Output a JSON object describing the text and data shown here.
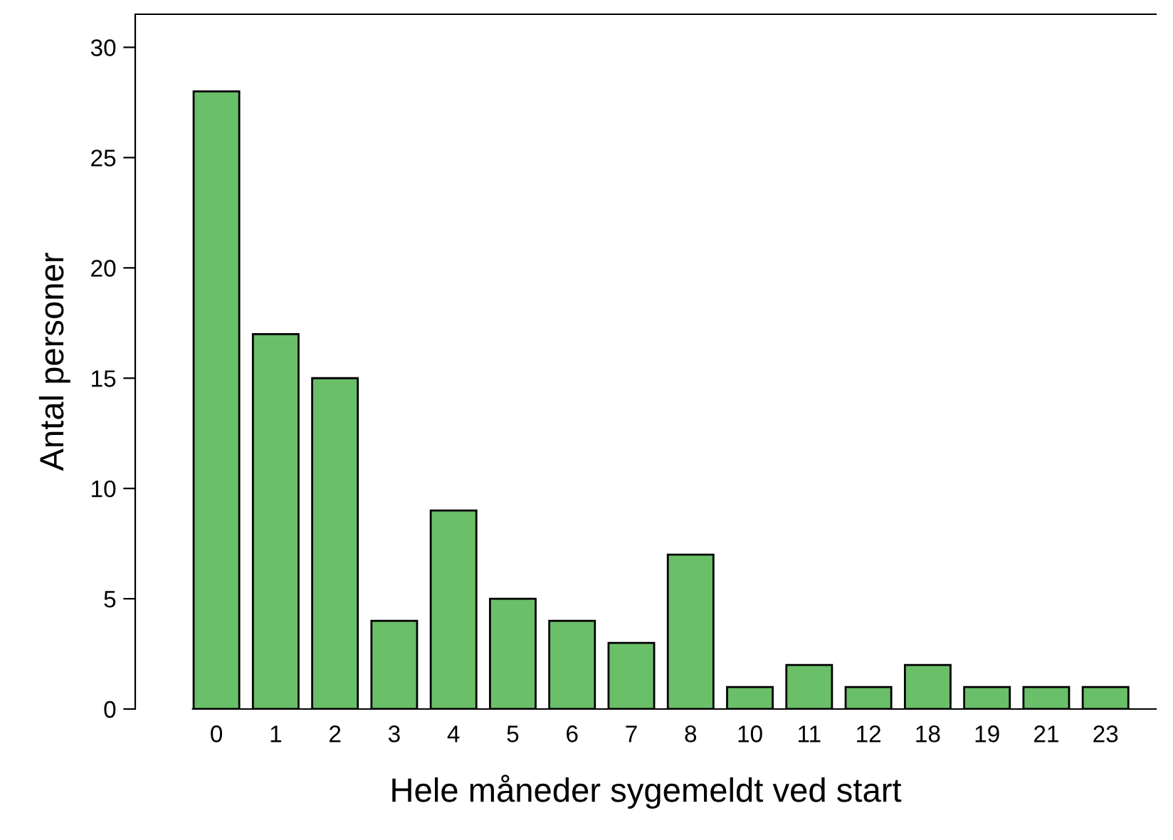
{
  "chart_data": {
    "type": "bar",
    "xlabel": "Hele måneder sygemeldt ved start",
    "ylabel": "Antal personer",
    "categories": [
      "0",
      "1",
      "2",
      "3",
      "4",
      "5",
      "6",
      "7",
      "8",
      "10",
      "11",
      "12",
      "18",
      "19",
      "21",
      "23"
    ],
    "values": [
      28,
      17,
      15,
      4,
      9,
      5,
      4,
      3,
      7,
      1,
      2,
      1,
      2,
      1,
      1,
      1
    ],
    "color": "#6abf69",
    "ylim": [
      0,
      31.5
    ],
    "yticks": [
      0,
      5,
      10,
      15,
      20,
      25,
      30
    ],
    "grid": false,
    "legend": false
  }
}
